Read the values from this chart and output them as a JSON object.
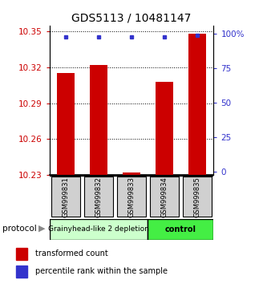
{
  "title": "GDS5113 / 10481147",
  "samples": [
    "GSM999831",
    "GSM999832",
    "GSM999833",
    "GSM999834",
    "GSM999835"
  ],
  "bar_values": [
    10.315,
    10.322,
    10.232,
    10.308,
    10.348
  ],
  "bar_base": 10.23,
  "percentile_values": [
    98,
    98,
    98,
    98,
    99
  ],
  "ylim_left": [
    10.23,
    10.355
  ],
  "ylim_right": [
    -2,
    106
  ],
  "yticks_left": [
    10.23,
    10.26,
    10.29,
    10.32,
    10.35
  ],
  "yticks_right": [
    0,
    25,
    50,
    75,
    100
  ],
  "ytick_labels_left": [
    "10.23",
    "10.26",
    "10.29",
    "10.32",
    "10.35"
  ],
  "ytick_labels_right": [
    "0",
    "25",
    "50",
    "75",
    "100%"
  ],
  "bar_color": "#cc0000",
  "percentile_color": "#3333cc",
  "group1_samples": [
    0,
    1,
    2
  ],
  "group2_samples": [
    3,
    4
  ],
  "group1_label": "Grainyhead-like 2 depletion",
  "group2_label": "control",
  "group1_color": "#ccffcc",
  "group2_color": "#44ee44",
  "protocol_label": "protocol",
  "legend_bar_label": "transformed count",
  "legend_pct_label": "percentile rank within the sample",
  "bar_width": 0.55,
  "title_fontsize": 10,
  "tick_fontsize": 7.5,
  "sample_fontsize": 6,
  "group_fontsize": 6.5,
  "legend_fontsize": 7
}
